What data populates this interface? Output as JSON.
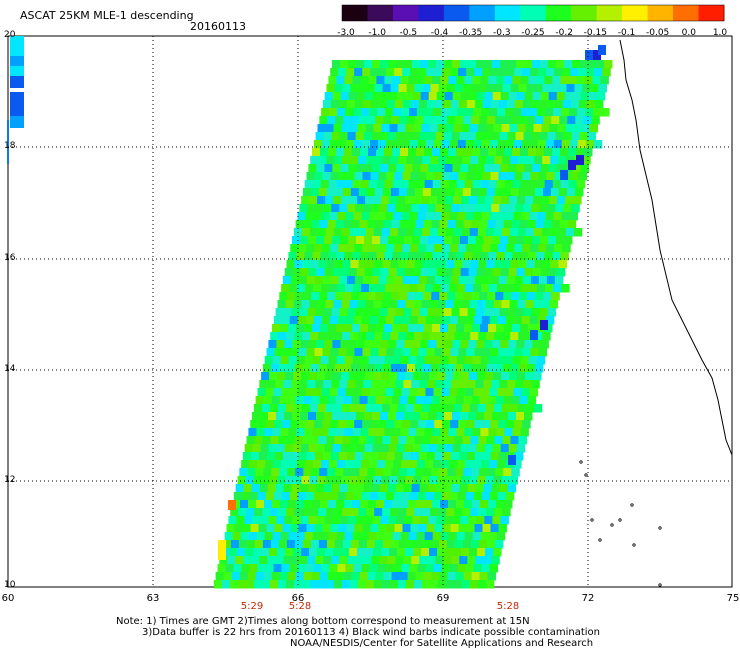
{
  "header": {
    "title": "ASCAT 25KM MLE-1 descending",
    "date": "20160113"
  },
  "colorbar": {
    "labels": [
      "-3.0",
      "-1.0",
      "-0.5",
      "-0.4",
      "-0.35",
      "-0.3",
      "-0.25",
      "-0.2",
      "-0.15",
      "-0.1",
      "-0.05",
      "0.0",
      "1.0"
    ],
    "colors": [
      "#1a0010",
      "#3c0a5a",
      "#5a0fb4",
      "#1e1ed2",
      "#0a5af0",
      "#00a0ff",
      "#00e6ff",
      "#00ffb4",
      "#1eff1e",
      "#64f000",
      "#b4f000",
      "#fff000",
      "#ffb400",
      "#ff6e00",
      "#ff1e00"
    ]
  },
  "map": {
    "x_ticks": [
      "60",
      "63",
      "66",
      "69",
      "72",
      "75"
    ],
    "y_ticks": [
      "20",
      "18",
      "16",
      "14",
      "12",
      "10"
    ],
    "times": [
      {
        "label": "5:29",
        "lon": 65.0
      },
      {
        "label": "5:28",
        "lon": 66.0
      },
      {
        "label": "5:28",
        "lon": 70.3
      }
    ]
  },
  "notes": {
    "line1": "Note: 1) Times are GMT 2)Times along bottom correspond to measurement at 15N",
    "line2": "3)Data buffer is 22 hrs from 20160113 4) Black wind barbs indicate possible contamination",
    "line3": "NOAA/NESDIS/Center for Satellite Applications and Research"
  }
}
